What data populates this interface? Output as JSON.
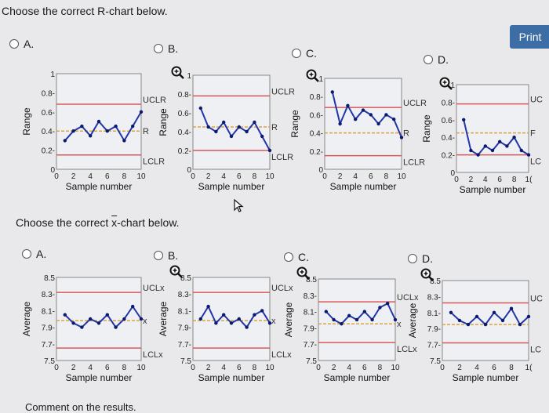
{
  "question1": "Choose the correct R-chart below.",
  "question2_prefix": "Choose the correct ",
  "question2_xbar": "x",
  "question2_suffix": "-chart below.",
  "print_label": "Print",
  "comment_label": "Comment on the results.",
  "r_options": [
    "A.",
    "B.",
    "C.",
    "D."
  ],
  "x_options": [
    "A.",
    "B.",
    "C.",
    "D."
  ],
  "chart_data": [
    {
      "type": "line",
      "panel": "R-A",
      "ylabel": "Range",
      "xlabel": "Sample number",
      "ylim": [
        0,
        1
      ],
      "xlim": [
        0,
        10
      ],
      "yticks": [
        "0",
        "0.2-",
        "0.4-",
        "0.6-",
        "0.8-",
        "1"
      ],
      "xticks": [
        "0",
        "2",
        "4",
        "6",
        "8",
        "10"
      ],
      "x": [
        1,
        2,
        3,
        4,
        5,
        6,
        7,
        8,
        9,
        10
      ],
      "values": [
        0.3,
        0.4,
        0.45,
        0.35,
        0.5,
        0.4,
        0.45,
        0.3,
        0.45,
        0.6
      ],
      "ucl": 0.68,
      "center": 0.4,
      "lcl": 0.15,
      "ucl_label": "UCLR",
      "center_label": "R",
      "lcl_label": "LCLR"
    },
    {
      "type": "line",
      "panel": "R-B",
      "ylabel": "Range",
      "xlabel": "Sample number",
      "ylim": [
        0,
        1
      ],
      "xlim": [
        0,
        10
      ],
      "yticks": [
        "0",
        "0.2-",
        "0.4-",
        "0.6-",
        "0.8-",
        "1"
      ],
      "xticks": [
        "0",
        "2",
        "4",
        "6",
        "8",
        "10"
      ],
      "x": [
        1,
        2,
        3,
        4,
        5,
        6,
        7,
        8,
        9,
        10
      ],
      "values": [
        0.65,
        0.45,
        0.4,
        0.5,
        0.35,
        0.45,
        0.4,
        0.5,
        0.35,
        0.2
      ],
      "ucl": 0.78,
      "center": 0.45,
      "lcl": 0.2,
      "ucl_label": "UCLR",
      "center_label": "R",
      "lcl_label": "LCLR"
    },
    {
      "type": "line",
      "panel": "R-C",
      "ylabel": "Range",
      "xlabel": "Sample number",
      "ylim": [
        0,
        1
      ],
      "xlim": [
        0,
        10
      ],
      "yticks": [
        "0",
        "0.2-",
        "0.4-",
        "0.6-",
        "0.8-",
        "1"
      ],
      "xticks": [
        "0",
        "2",
        "4",
        "6",
        "8",
        "10"
      ],
      "x": [
        1,
        2,
        3,
        4,
        5,
        6,
        7,
        8,
        9,
        10
      ],
      "values": [
        0.85,
        0.5,
        0.7,
        0.55,
        0.65,
        0.6,
        0.5,
        0.6,
        0.55,
        0.35
      ],
      "ucl": 0.68,
      "center": 0.4,
      "lcl": 0.15,
      "ucl_label": "UCLR",
      "center_label": "R",
      "lcl_label": "LCLR"
    },
    {
      "type": "line",
      "panel": "R-D",
      "ylabel": "Range",
      "xlabel": "Sample number",
      "ylim": [
        0,
        1
      ],
      "xlim": [
        0,
        10
      ],
      "yticks": [
        "0",
        "0.2-",
        "0.4-",
        "0.6-",
        "0.8-",
        "1"
      ],
      "xticks": [
        "0",
        "2",
        "4",
        "6",
        "8",
        "1("
      ],
      "x": [
        1,
        2,
        3,
        4,
        5,
        6,
        7,
        8,
        9,
        10
      ],
      "values": [
        0.6,
        0.25,
        0.2,
        0.3,
        0.25,
        0.35,
        0.3,
        0.4,
        0.25,
        0.2
      ],
      "ucl": 0.78,
      "center": 0.45,
      "lcl": 0.2,
      "ucl_label": "UC",
      "center_label": "F",
      "lcl_label": "LC"
    },
    {
      "type": "line",
      "panel": "X-A",
      "ylabel": "Average",
      "xlabel": "Sample number",
      "ylim": [
        7.5,
        8.5
      ],
      "xlim": [
        0,
        10
      ],
      "yticks": [
        "7.5",
        "7.7-",
        "7.9-",
        "8.1-",
        "8.3-",
        "8.5"
      ],
      "xticks": [
        "0",
        "2",
        "4",
        "6",
        "8",
        "10"
      ],
      "x": [
        1,
        2,
        3,
        4,
        5,
        6,
        7,
        8,
        9,
        10
      ],
      "values": [
        8.05,
        7.95,
        7.9,
        8.0,
        7.95,
        8.05,
        7.9,
        8.0,
        8.15,
        8.0
      ],
      "ucl": 8.32,
      "center": 7.98,
      "lcl": 7.65,
      "ucl_label": "UCLx",
      "center_label": "x",
      "lcl_label": "LCLx"
    },
    {
      "type": "line",
      "panel": "X-B",
      "ylabel": "Average",
      "xlabel": "Sample number",
      "ylim": [
        7.5,
        8.5
      ],
      "xlim": [
        0,
        10
      ],
      "yticks": [
        "7.5",
        "7.7-",
        "7.9-",
        "8.1-",
        "8.3-",
        "8.5"
      ],
      "xticks": [
        "0",
        "2",
        "4",
        "6",
        "8",
        "10"
      ],
      "x": [
        1,
        2,
        3,
        4,
        5,
        6,
        7,
        8,
        9,
        10
      ],
      "values": [
        8.0,
        8.15,
        7.95,
        8.05,
        7.95,
        8.0,
        7.9,
        8.05,
        8.1,
        7.95
      ],
      "ucl": 8.32,
      "center": 7.98,
      "lcl": 7.65,
      "ucl_label": "UCLx",
      "center_label": "x",
      "lcl_label": "LCLx"
    },
    {
      "type": "line",
      "panel": "X-C",
      "ylabel": "Average",
      "xlabel": "Sample number",
      "ylim": [
        7.5,
        8.5
      ],
      "xlim": [
        0,
        10
      ],
      "yticks": [
        "7.5",
        "7.7-",
        "7.9-",
        "8.1-",
        "8.3-",
        "8.5"
      ],
      "xticks": [
        "0",
        "2",
        "4",
        "6",
        "8",
        "10"
      ],
      "x": [
        1,
        2,
        3,
        4,
        5,
        6,
        7,
        8,
        9,
        10
      ],
      "values": [
        8.1,
        8.0,
        7.95,
        8.05,
        8.0,
        8.1,
        8.0,
        8.15,
        8.2,
        8.0
      ],
      "ucl": 8.22,
      "center": 7.95,
      "lcl": 7.72,
      "ucl_label": "UCLx",
      "center_label": "x",
      "lcl_label": "LCLx"
    },
    {
      "type": "line",
      "panel": "X-D",
      "ylabel": "Average",
      "xlabel": "Sample number",
      "ylim": [
        7.5,
        8.5
      ],
      "xlim": [
        0,
        10
      ],
      "yticks": [
        "7.5",
        "7.7-",
        "7.9-",
        "8.1-",
        "8.3-",
        "8.5"
      ],
      "xticks": [
        "0",
        "2",
        "4",
        "6",
        "8",
        "1("
      ],
      "x": [
        1,
        2,
        3,
        4,
        5,
        6,
        7,
        8,
        9,
        10
      ],
      "values": [
        8.1,
        8.0,
        7.95,
        8.05,
        7.95,
        8.1,
        8.0,
        8.15,
        7.95,
        8.05
      ],
      "ucl": 8.22,
      "center": 7.95,
      "lcl": 7.72,
      "ucl_label": "UC",
      "center_label": "",
      "lcl_label": "LC"
    }
  ]
}
